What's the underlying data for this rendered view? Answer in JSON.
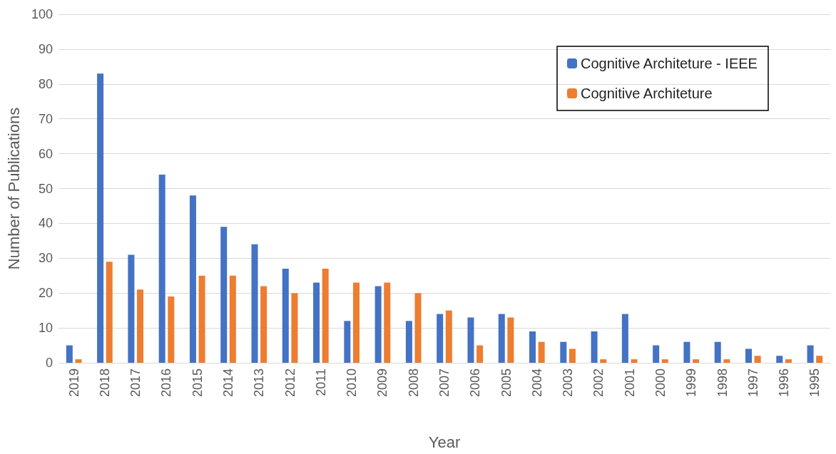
{
  "chart_data": {
    "type": "bar",
    "xlabel": "Year",
    "ylabel": "Number of Publications",
    "categories": [
      "2019",
      "2018",
      "2017",
      "2016",
      "2015",
      "2014",
      "2013",
      "2012",
      "2011",
      "2010",
      "2009",
      "2008",
      "2007",
      "2006",
      "2005",
      "2004",
      "2003",
      "2002",
      "2001",
      "2000",
      "1999",
      "1998",
      "1997",
      "1996",
      "1995"
    ],
    "series": [
      {
        "name": "Cognitive Architeture - IEEE",
        "color": "#4472c4",
        "values": [
          5,
          83,
          31,
          54,
          48,
          39,
          34,
          27,
          23,
          12,
          22,
          12,
          14,
          13,
          14,
          9,
          6,
          9,
          14,
          5,
          6,
          6,
          4,
          2,
          5
        ]
      },
      {
        "name": "Cognitive Architeture",
        "color": "#ed7d31",
        "values": [
          1,
          29,
          21,
          19,
          25,
          25,
          22,
          20,
          27,
          23,
          23,
          20,
          15,
          5,
          13,
          6,
          4,
          1,
          1,
          1,
          1,
          1,
          2,
          1,
          2
        ]
      }
    ],
    "ylim": [
      0,
      100
    ],
    "yticks": [
      0,
      10,
      20,
      30,
      40,
      50,
      60,
      70,
      80,
      90,
      100
    ],
    "grid": "y",
    "legend": "top right"
  }
}
